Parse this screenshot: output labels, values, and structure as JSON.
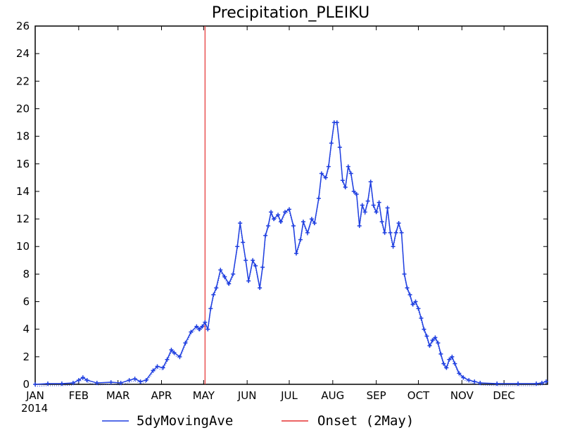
{
  "chart_data": {
    "type": "line",
    "title": "Precipitation_PLEIKU",
    "xlabel": "",
    "ylabel": "",
    "year_label": "2014",
    "ylim": [
      0,
      26
    ],
    "yticks": [
      0,
      2,
      4,
      6,
      8,
      10,
      12,
      14,
      16,
      18,
      20,
      22,
      24,
      26
    ],
    "months": [
      "JAN",
      "FEB",
      "MAR",
      "APR",
      "MAY",
      "JUN",
      "JUL",
      "AUG",
      "SEP",
      "OCT",
      "NOV",
      "DEC"
    ],
    "xlim_days": [
      1,
      366
    ],
    "grid": false,
    "legend_position": "bottom",
    "colors": {
      "series": "#1f3fe0",
      "onset": "#e53030",
      "axis": "#000000"
    },
    "series": [
      {
        "name": "5dyMovingAve",
        "day_values": [
          [
            1,
            0.0
          ],
          [
            10,
            0.05
          ],
          [
            20,
            0.05
          ],
          [
            28,
            0.1
          ],
          [
            32,
            0.3
          ],
          [
            35,
            0.5
          ],
          [
            38,
            0.3
          ],
          [
            45,
            0.1
          ],
          [
            55,
            0.15
          ],
          [
            62,
            0.1
          ],
          [
            68,
            0.3
          ],
          [
            72,
            0.4
          ],
          [
            76,
            0.2
          ],
          [
            80,
            0.3
          ],
          [
            85,
            1.0
          ],
          [
            88,
            1.3
          ],
          [
            92,
            1.2
          ],
          [
            95,
            1.8
          ],
          [
            98,
            2.5
          ],
          [
            100,
            2.3
          ],
          [
            104,
            2.0
          ],
          [
            108,
            3.0
          ],
          [
            112,
            3.8
          ],
          [
            116,
            4.2
          ],
          [
            118,
            4.0
          ],
          [
            120,
            4.2
          ],
          [
            122,
            4.5
          ],
          [
            124,
            4.0
          ],
          [
            126,
            5.5
          ],
          [
            128,
            6.5
          ],
          [
            130,
            7.0
          ],
          [
            133,
            8.3
          ],
          [
            136,
            7.8
          ],
          [
            139,
            7.3
          ],
          [
            142,
            8.0
          ],
          [
            145,
            10.0
          ],
          [
            147,
            11.7
          ],
          [
            149,
            10.3
          ],
          [
            151,
            9.0
          ],
          [
            153,
            7.5
          ],
          [
            156,
            9.0
          ],
          [
            158,
            8.6
          ],
          [
            161,
            7.0
          ],
          [
            163,
            8.5
          ],
          [
            165,
            10.8
          ],
          [
            167,
            11.5
          ],
          [
            169,
            12.5
          ],
          [
            171,
            12.0
          ],
          [
            174,
            12.3
          ],
          [
            176,
            11.8
          ],
          [
            179,
            12.5
          ],
          [
            182,
            12.7
          ],
          [
            185,
            11.5
          ],
          [
            187,
            9.5
          ],
          [
            190,
            10.5
          ],
          [
            192,
            11.8
          ],
          [
            195,
            11.0
          ],
          [
            198,
            12.0
          ],
          [
            200,
            11.7
          ],
          [
            203,
            13.5
          ],
          [
            205,
            15.3
          ],
          [
            208,
            15.0
          ],
          [
            210,
            15.8
          ],
          [
            212,
            17.5
          ],
          [
            214,
            19.0
          ],
          [
            216,
            19.0
          ],
          [
            218,
            17.2
          ],
          [
            220,
            14.8
          ],
          [
            222,
            14.3
          ],
          [
            224,
            15.8
          ],
          [
            226,
            15.3
          ],
          [
            228,
            14.0
          ],
          [
            230,
            13.8
          ],
          [
            232,
            11.5
          ],
          [
            234,
            13.0
          ],
          [
            236,
            12.5
          ],
          [
            238,
            13.3
          ],
          [
            240,
            14.7
          ],
          [
            242,
            13.0
          ],
          [
            244,
            12.5
          ],
          [
            246,
            13.2
          ],
          [
            248,
            11.8
          ],
          [
            250,
            11.0
          ],
          [
            252,
            12.8
          ],
          [
            254,
            11.0
          ],
          [
            256,
            10.0
          ],
          [
            258,
            11.0
          ],
          [
            260,
            11.7
          ],
          [
            262,
            11.0
          ],
          [
            264,
            8.0
          ],
          [
            266,
            7.0
          ],
          [
            268,
            6.5
          ],
          [
            270,
            5.8
          ],
          [
            272,
            6.0
          ],
          [
            274,
            5.5
          ],
          [
            276,
            4.8
          ],
          [
            278,
            4.0
          ],
          [
            280,
            3.5
          ],
          [
            282,
            2.8
          ],
          [
            284,
            3.2
          ],
          [
            286,
            3.4
          ],
          [
            288,
            3.0
          ],
          [
            290,
            2.2
          ],
          [
            292,
            1.5
          ],
          [
            294,
            1.2
          ],
          [
            296,
            1.8
          ],
          [
            298,
            2.0
          ],
          [
            300,
            1.5
          ],
          [
            303,
            0.8
          ],
          [
            306,
            0.5
          ],
          [
            310,
            0.3
          ],
          [
            314,
            0.2
          ],
          [
            318,
            0.1
          ],
          [
            330,
            0.05
          ],
          [
            345,
            0.05
          ],
          [
            358,
            0.05
          ],
          [
            362,
            0.1
          ],
          [
            365,
            0.2
          ]
        ]
      }
    ],
    "onset": {
      "name": "Onset (2May)",
      "day": 122
    }
  }
}
